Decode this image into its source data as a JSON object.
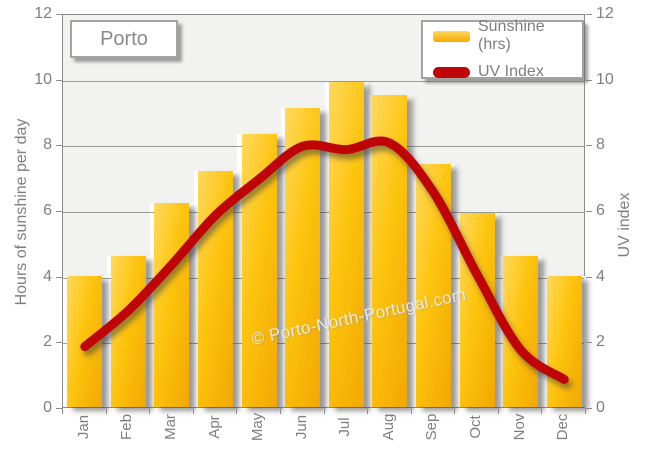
{
  "title": "Porto",
  "watermark": "© Porto-North-Portugal.com",
  "colors": {
    "bar": "#fdc40d",
    "line": "#be0404",
    "plot_background": "#f2f2f0",
    "grid": "#9a9a9a",
    "label_gray": "#7f7f7f"
  },
  "legend": {
    "items": [
      {
        "label": "Sunshine (hrs)",
        "type": "bar",
        "color": "#fdc40d"
      },
      {
        "label": "UV Index",
        "type": "line",
        "color": "#be0404"
      }
    ]
  },
  "axes": {
    "left": {
      "title": "Hours of sunshine per day",
      "ticks": [
        0,
        2,
        4,
        6,
        8,
        10,
        12
      ]
    },
    "right": {
      "title": "UV index",
      "ticks": [
        0,
        2,
        4,
        6,
        8,
        10,
        12
      ]
    },
    "bottom": {
      "labels": [
        "Jan",
        "Feb",
        "Mar",
        "Apr",
        "May",
        "Jun",
        "Jul",
        "Aug",
        "Sep",
        "Oct",
        "Nov",
        "Dec"
      ]
    }
  },
  "chart_data": {
    "type": "bar",
    "title": "Porto",
    "categories": [
      "Jan",
      "Feb",
      "Mar",
      "Apr",
      "May",
      "Jun",
      "Jul",
      "Aug",
      "Sep",
      "Oct",
      "Nov",
      "Dec"
    ],
    "series": [
      {
        "name": "Sunshine (hrs)",
        "type": "bar",
        "axis": "left",
        "values": [
          4.0,
          4.6,
          6.2,
          7.2,
          8.3,
          9.1,
          9.9,
          9.5,
          7.4,
          5.9,
          4.6,
          4.0
        ]
      },
      {
        "name": "UV Index",
        "type": "line",
        "axis": "right",
        "values": [
          1.9,
          3.0,
          4.4,
          5.9,
          7.0,
          8.0,
          7.9,
          8.1,
          6.6,
          4.1,
          1.8,
          0.9
        ]
      }
    ],
    "xlabel": "",
    "ylabel_left": "Hours of sunshine per day",
    "ylabel_right": "UV index",
    "ylim": [
      0,
      12
    ],
    "grid": true,
    "legend_position": "top-right"
  }
}
